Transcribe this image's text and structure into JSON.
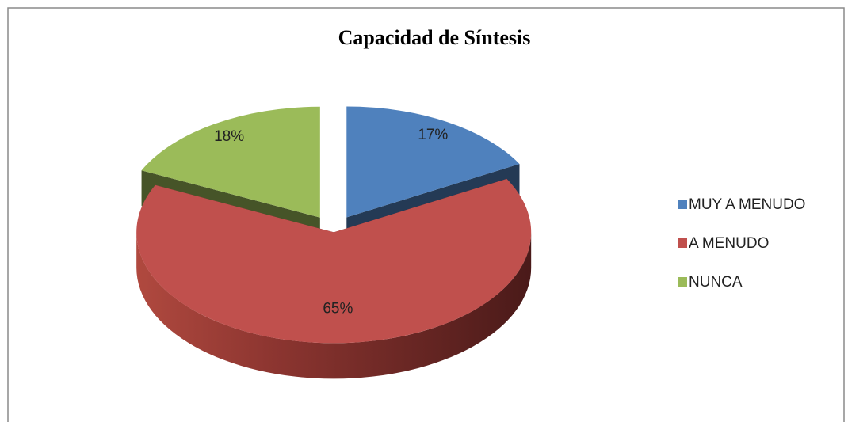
{
  "chart_data": {
    "type": "pie",
    "title": "Capacidad de Síntesis",
    "categories": [
      "MUY A  MENUDO",
      "A MENUDO",
      "NUNCA"
    ],
    "values": [
      17,
      65,
      18
    ],
    "value_labels": [
      "17%",
      "65%",
      "18%"
    ],
    "colors": [
      "#4f81bd",
      "#c0504d",
      "#9bbb59"
    ],
    "legend": "right"
  }
}
